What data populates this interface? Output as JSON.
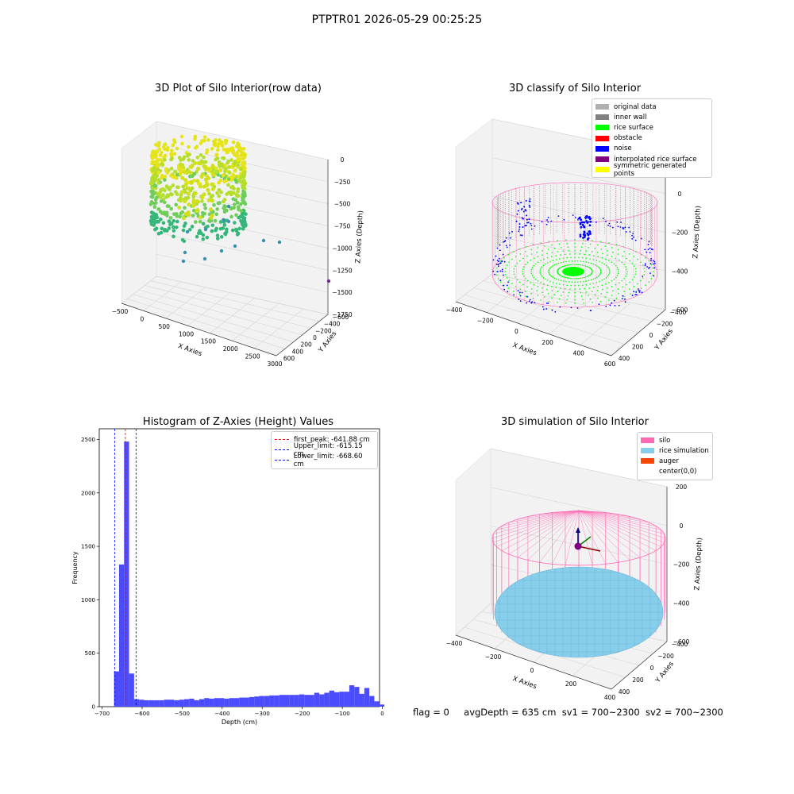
{
  "suptitle": "PTPTR01 2026-05-29 00:25:25",
  "footer": {
    "flag": "flag = 0",
    "avg_depth": "avgDepth = 635 cm",
    "sv1": "sv1 = 700~2300",
    "sv2": "sv2 = 700~2300"
  },
  "colors": {
    "silo": "#ff69b4",
    "rice_simulation": "#87ceeb",
    "auger": "#ff4500",
    "rice_surface": "#00ff00",
    "noise": "#0000ff",
    "inner_wall": "#808080",
    "original_data": "#b0b0b0",
    "obstacle": "#ff0000",
    "interpolated": "#800080",
    "symmetric": "#ffff00",
    "hist_bar": "#4b4bff"
  },
  "chart_data": [
    {
      "id": "raw",
      "type": "scatter",
      "title": "3D Plot of Silo Interior(row data)",
      "xlabel": "X Axies",
      "ylabel": "Y Axies",
      "zlabel": "Z Axies (Depth)",
      "x_ticks": [
        "−500",
        "0",
        "500",
        "1000",
        "1500",
        "2000",
        "2500",
        "3000"
      ],
      "y_ticks": [
        "600",
        "400",
        "200",
        "0",
        "−200",
        "−400",
        "−600"
      ],
      "z_ticks": [
        "0",
        "−250",
        "−500",
        "−750",
        "−1000",
        "−1250",
        "−1500",
        "−1750"
      ]
    },
    {
      "id": "classify",
      "type": "scatter",
      "title": "3D classify of Silo Interior",
      "xlabel": "X Axies",
      "ylabel": "Y Axies",
      "zlabel": "Z Axies (Depth)",
      "x_ticks": [
        "−400",
        "−200",
        "0",
        "200",
        "400",
        "600"
      ],
      "y_ticks": [
        "400",
        "200",
        "0",
        "−200",
        "−400"
      ],
      "z_ticks": [
        "200",
        "0",
        "−200",
        "−400",
        "−600"
      ],
      "legend": [
        {
          "label": "original data",
          "color": "#b0b0b0"
        },
        {
          "label": "inner wall",
          "color": "#808080"
        },
        {
          "label": "rice surface",
          "color": "#00ff00"
        },
        {
          "label": "obstacle",
          "color": "#ff0000"
        },
        {
          "label": "noise",
          "color": "#0000ff"
        },
        {
          "label": "interpolated rice surface",
          "color": "#800080"
        },
        {
          "label": "symmetric generated points",
          "color": "#ffff00"
        }
      ]
    },
    {
      "id": "hist",
      "type": "bar",
      "title": "Histogram of Z-Axies (Height) Values",
      "xlabel": "Depth (cm)",
      "ylabel": "Frequency",
      "xlim": [
        -700,
        0
      ],
      "ylim": [
        0,
        2600
      ],
      "x_ticks": [
        -700,
        -600,
        -500,
        -400,
        -300,
        -200,
        -100,
        0
      ],
      "y_ticks": [
        0,
        500,
        1000,
        1500,
        2000,
        2500
      ],
      "bin_start": -670,
      "bin_width": 12.5,
      "values": [
        330,
        1330,
        2480,
        310,
        70,
        65,
        60,
        60,
        60,
        60,
        65,
        65,
        60,
        65,
        70,
        75,
        60,
        70,
        80,
        75,
        80,
        80,
        75,
        80,
        80,
        85,
        85,
        90,
        95,
        100,
        100,
        105,
        105,
        110,
        110,
        110,
        110,
        115,
        110,
        110,
        130,
        115,
        130,
        150,
        135,
        140,
        140,
        200,
        185,
        120,
        175,
        100,
        50,
        20
      ],
      "vlines": [
        {
          "label": "first_peak: -641.88 cm",
          "value": -641.88,
          "color": "#ff0000"
        },
        {
          "label": "Upper_limit: -615.15 cm",
          "value": -615.15,
          "color": "#0000ff"
        },
        {
          "label": "Lower_limit: -668.60 cm",
          "value": -668.6,
          "color": "#0000ff"
        }
      ]
    },
    {
      "id": "sim",
      "type": "scatter",
      "title": "3D simulation of Silo Interior",
      "xlabel": "X Axies",
      "ylabel": "Y Axies",
      "zlabel": "Z Axies (Depth)",
      "x_ticks": [
        "−400",
        "−200",
        "0",
        "200",
        "400"
      ],
      "y_ticks": [
        "400",
        "200",
        "0",
        "−200",
        "−400"
      ],
      "z_ticks": [
        "200",
        "0",
        "−200",
        "−400",
        "−600"
      ],
      "legend": [
        {
          "label": "silo",
          "color": "#ff69b4"
        },
        {
          "label": "rice simulation",
          "color": "#87ceeb"
        },
        {
          "label": "auger",
          "color": "#ff4500"
        },
        {
          "label": "center(0,0)",
          "color": ""
        }
      ]
    }
  ]
}
